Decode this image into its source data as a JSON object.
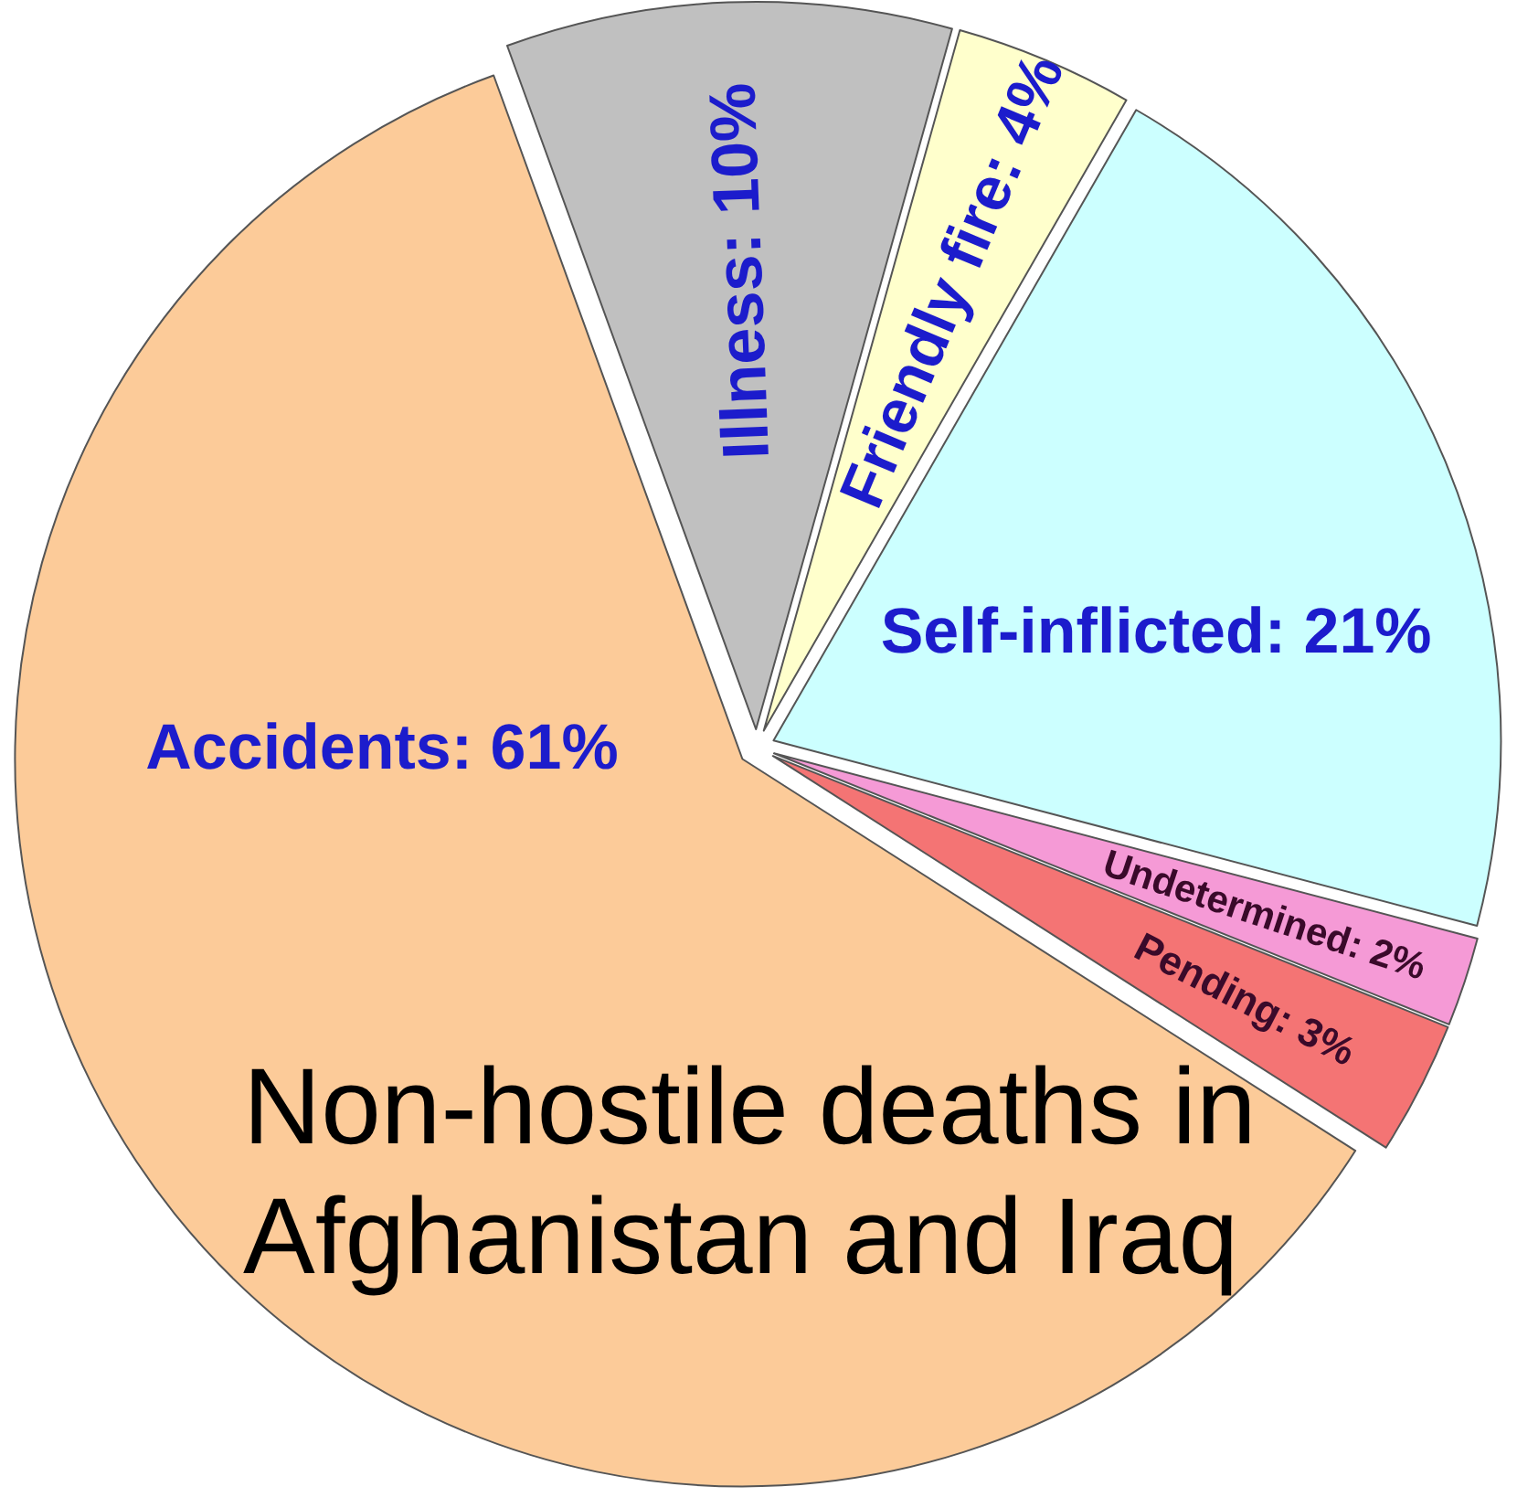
{
  "chart_data": {
    "type": "pie",
    "title": "Non-hostile deaths in Afghanistan and Iraq",
    "categories": [
      "Illness",
      "Friendly fire",
      "Self-inflicted",
      "Undetermined",
      "Pending",
      "Accidents"
    ],
    "values": [
      10,
      4,
      21,
      2,
      3,
      61
    ],
    "value_labels": [
      "10%",
      "4%",
      "21%",
      "2%",
      "3%",
      "61%"
    ],
    "colors": [
      "#c0c0c0",
      "#ffffcc",
      "#ccffff",
      "#f59ad6",
      "#f47474",
      "#fccb99"
    ],
    "legend": false
  }
}
